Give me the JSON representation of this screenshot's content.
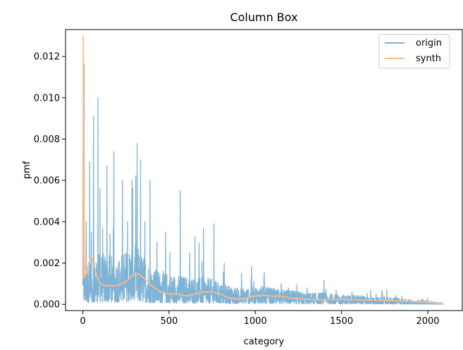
{
  "chart_data": {
    "type": "line",
    "title": "Column Box",
    "xlabel": "category",
    "ylabel": "pmf",
    "xlim": [
      -100,
      2200
    ],
    "ylim": [
      -0.0003,
      0.0133
    ],
    "xticks": [
      0,
      500,
      1000,
      1500,
      2000
    ],
    "yticks": [
      0.0,
      0.002,
      0.004,
      0.006,
      0.008,
      0.01,
      0.012
    ],
    "ytick_labels": [
      "0.000",
      "0.002",
      "0.004",
      "0.006",
      "0.008",
      "0.010",
      "0.012"
    ],
    "grid": false,
    "legend_position": "top-right",
    "series": [
      {
        "name": "origin",
        "color": "#7fb3d5",
        "spikes": [
          {
            "x": 2,
            "y": 0.0073
          },
          {
            "x": 8,
            "y": 0.0116
          },
          {
            "x": 20,
            "y": 0.004
          },
          {
            "x": 40,
            "y": 0.0069
          },
          {
            "x": 62,
            "y": 0.0091
          },
          {
            "x": 88,
            "y": 0.01
          },
          {
            "x": 100,
            "y": 0.0056
          },
          {
            "x": 115,
            "y": 0.0037
          },
          {
            "x": 140,
            "y": 0.0067
          },
          {
            "x": 158,
            "y": 0.0034
          },
          {
            "x": 180,
            "y": 0.0074
          },
          {
            "x": 230,
            "y": 0.006
          },
          {
            "x": 260,
            "y": 0.004
          },
          {
            "x": 285,
            "y": 0.006
          },
          {
            "x": 315,
            "y": 0.0078
          },
          {
            "x": 335,
            "y": 0.007
          },
          {
            "x": 360,
            "y": 0.004
          },
          {
            "x": 390,
            "y": 0.006
          },
          {
            "x": 430,
            "y": 0.003
          },
          {
            "x": 480,
            "y": 0.0035
          },
          {
            "x": 505,
            "y": 0.0025
          },
          {
            "x": 565,
            "y": 0.0055
          },
          {
            "x": 620,
            "y": 0.0025
          },
          {
            "x": 650,
            "y": 0.0033
          },
          {
            "x": 700,
            "y": 0.0037
          },
          {
            "x": 760,
            "y": 0.0039
          },
          {
            "x": 820,
            "y": 0.002
          },
          {
            "x": 920,
            "y": 0.0015
          },
          {
            "x": 1050,
            "y": 0.0013
          },
          {
            "x": 1150,
            "y": 0.001
          },
          {
            "x": 1300,
            "y": 0.0008
          },
          {
            "x": 1400,
            "y": 0.0007
          },
          {
            "x": 1560,
            "y": 0.0006
          },
          {
            "x": 1700,
            "y": 0.0005
          },
          {
            "x": 1850,
            "y": 0.0004
          },
          {
            "x": 2000,
            "y": 0.0003
          },
          {
            "x": 2090,
            "y": 5e-05
          }
        ],
        "envelope": [
          {
            "x": 0,
            "y": 0.0015
          },
          {
            "x": 100,
            "y": 0.0022
          },
          {
            "x": 200,
            "y": 0.002
          },
          {
            "x": 300,
            "y": 0.0026
          },
          {
            "x": 400,
            "y": 0.0016
          },
          {
            "x": 500,
            "y": 0.0013
          },
          {
            "x": 600,
            "y": 0.0012
          },
          {
            "x": 700,
            "y": 0.0012
          },
          {
            "x": 800,
            "y": 0.0009
          },
          {
            "x": 900,
            "y": 0.0007
          },
          {
            "x": 1000,
            "y": 0.0008
          },
          {
            "x": 1100,
            "y": 0.0007
          },
          {
            "x": 1200,
            "y": 0.0006
          },
          {
            "x": 1300,
            "y": 0.0005
          },
          {
            "x": 1400,
            "y": 0.0005
          },
          {
            "x": 1500,
            "y": 0.0004
          },
          {
            "x": 1600,
            "y": 0.0004
          },
          {
            "x": 1700,
            "y": 0.0003
          },
          {
            "x": 1800,
            "y": 0.0003
          },
          {
            "x": 1900,
            "y": 0.0002
          },
          {
            "x": 2000,
            "y": 0.00015
          },
          {
            "x": 2090,
            "y": 5e-05
          }
        ]
      },
      {
        "name": "synth",
        "color": "#ffbb88",
        "points": [
          {
            "x": 0,
            "y": 0.0012
          },
          {
            "x": 3,
            "y": 0.013
          },
          {
            "x": 6,
            "y": 0.004
          },
          {
            "x": 10,
            "y": 0.0013
          },
          {
            "x": 20,
            "y": 0.0015
          },
          {
            "x": 35,
            "y": 0.002
          },
          {
            "x": 50,
            "y": 0.0023
          },
          {
            "x": 65,
            "y": 0.0019
          },
          {
            "x": 80,
            "y": 0.0014
          },
          {
            "x": 100,
            "y": 0.001
          },
          {
            "x": 130,
            "y": 0.0009
          },
          {
            "x": 160,
            "y": 0.0009
          },
          {
            "x": 200,
            "y": 0.0009
          },
          {
            "x": 250,
            "y": 0.0011
          },
          {
            "x": 290,
            "y": 0.0014
          },
          {
            "x": 320,
            "y": 0.0015
          },
          {
            "x": 350,
            "y": 0.0013
          },
          {
            "x": 400,
            "y": 0.0009
          },
          {
            "x": 450,
            "y": 0.0006
          },
          {
            "x": 500,
            "y": 0.0005
          },
          {
            "x": 550,
            "y": 0.0005
          },
          {
            "x": 600,
            "y": 0.0004
          },
          {
            "x": 650,
            "y": 0.0005
          },
          {
            "x": 700,
            "y": 0.0006
          },
          {
            "x": 750,
            "y": 0.0006
          },
          {
            "x": 800,
            "y": 0.0005
          },
          {
            "x": 850,
            "y": 0.0003
          },
          {
            "x": 900,
            "y": 0.00025
          },
          {
            "x": 950,
            "y": 0.0003
          },
          {
            "x": 1000,
            "y": 0.0004
          },
          {
            "x": 1050,
            "y": 0.00045
          },
          {
            "x": 1100,
            "y": 0.0004
          },
          {
            "x": 1150,
            "y": 0.0004
          },
          {
            "x": 1200,
            "y": 0.0003
          },
          {
            "x": 1300,
            "y": 0.00025
          },
          {
            "x": 1400,
            "y": 0.00022
          },
          {
            "x": 1500,
            "y": 0.00025
          },
          {
            "x": 1600,
            "y": 0.00022
          },
          {
            "x": 1700,
            "y": 0.0002
          },
          {
            "x": 1800,
            "y": 0.00018
          },
          {
            "x": 1900,
            "y": 0.00015
          },
          {
            "x": 2000,
            "y": 0.0001
          },
          {
            "x": 2090,
            "y": 2e-05
          }
        ]
      }
    ]
  }
}
